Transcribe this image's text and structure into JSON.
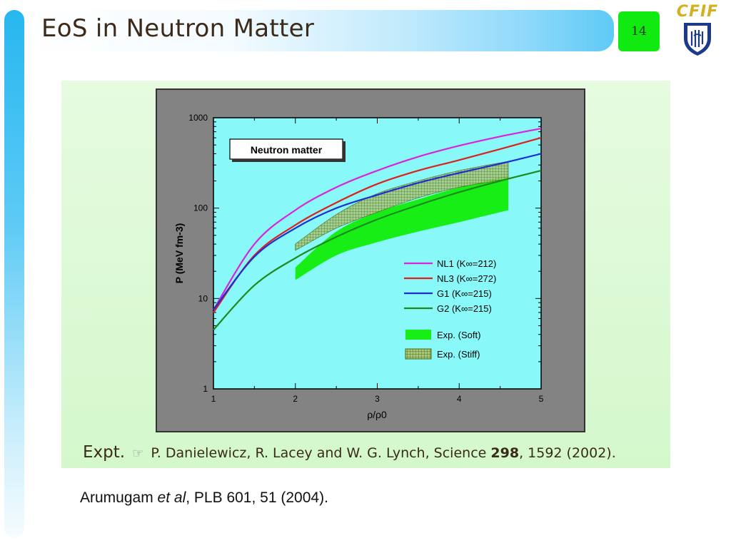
{
  "slide": {
    "title": "EoS in Neutron Matter",
    "page_number": "14",
    "logo_text": "CFIF",
    "citation": {
      "lead": "Expt.",
      "authors": "P. Danielewicz, R. Lacey and W. G. Lynch, Science",
      "volume": "298",
      "pages_year": ", 1592 (2002)."
    },
    "reference": {
      "author": "Arumugam",
      "etal": "et al",
      "journal": "PLB 601",
      "rest": ", 51 (2004)."
    }
  },
  "chart_data": {
    "type": "line",
    "title": "Neutron matter",
    "xlabel": "ρ/ρ0",
    "ylabel": "P (MeV fm-3)",
    "xlim": [
      1,
      5
    ],
    "ylim": [
      1,
      1000
    ],
    "yscale": "log",
    "x_ticks": [
      1,
      2,
      3,
      4,
      5
    ],
    "y_ticks": [
      1,
      10,
      100,
      1000
    ],
    "x": [
      1.0,
      1.5,
      2.0,
      2.5,
      3.0,
      3.5,
      4.0,
      4.5,
      5.0
    ],
    "series": [
      {
        "name": "NL1 (K∞=212)",
        "color": "#dd22dd",
        "values": [
          7.5,
          40,
          95,
          170,
          260,
          370,
          490,
          620,
          760
        ]
      },
      {
        "name": "NL3 (K∞=272)",
        "color": "#dd2020",
        "values": [
          7,
          30,
          65,
          115,
          185,
          260,
          340,
          450,
          600
        ]
      },
      {
        "name": "G1  (K∞=215)",
        "color": "#1e2fd0",
        "values": [
          7.5,
          29,
          60,
          100,
          140,
          190,
          245,
          310,
          400
        ]
      },
      {
        "name": "G2  (K∞=215)",
        "color": "#1c8a1c",
        "values": [
          4.5,
          14,
          28,
          48,
          75,
          108,
          150,
          200,
          260
        ]
      }
    ],
    "bands": [
      {
        "name": "Exp. (Soft)",
        "fill": "#16ee16",
        "pattern": "solid",
        "x": [
          2.0,
          2.5,
          3.0,
          3.5,
          4.0,
          4.6
        ],
        "lower": [
          16,
          30,
          42,
          55,
          70,
          95
        ],
        "upper": [
          22,
          55,
          90,
          125,
          170,
          230
        ]
      },
      {
        "name": "Exp. (Stiff)",
        "fill": "#5c7a2a",
        "pattern": "crosshatch",
        "x": [
          2.0,
          2.5,
          3.0,
          3.5,
          4.0,
          4.6
        ],
        "lower": [
          34,
          60,
          90,
          130,
          170,
          210
        ],
        "upper": [
          40,
          85,
          145,
          200,
          260,
          330
        ]
      }
    ],
    "legend_placement": "lower-right",
    "colors": {
      "plot_bg": "#88f8f8",
      "frame_bg": "#838383"
    }
  }
}
